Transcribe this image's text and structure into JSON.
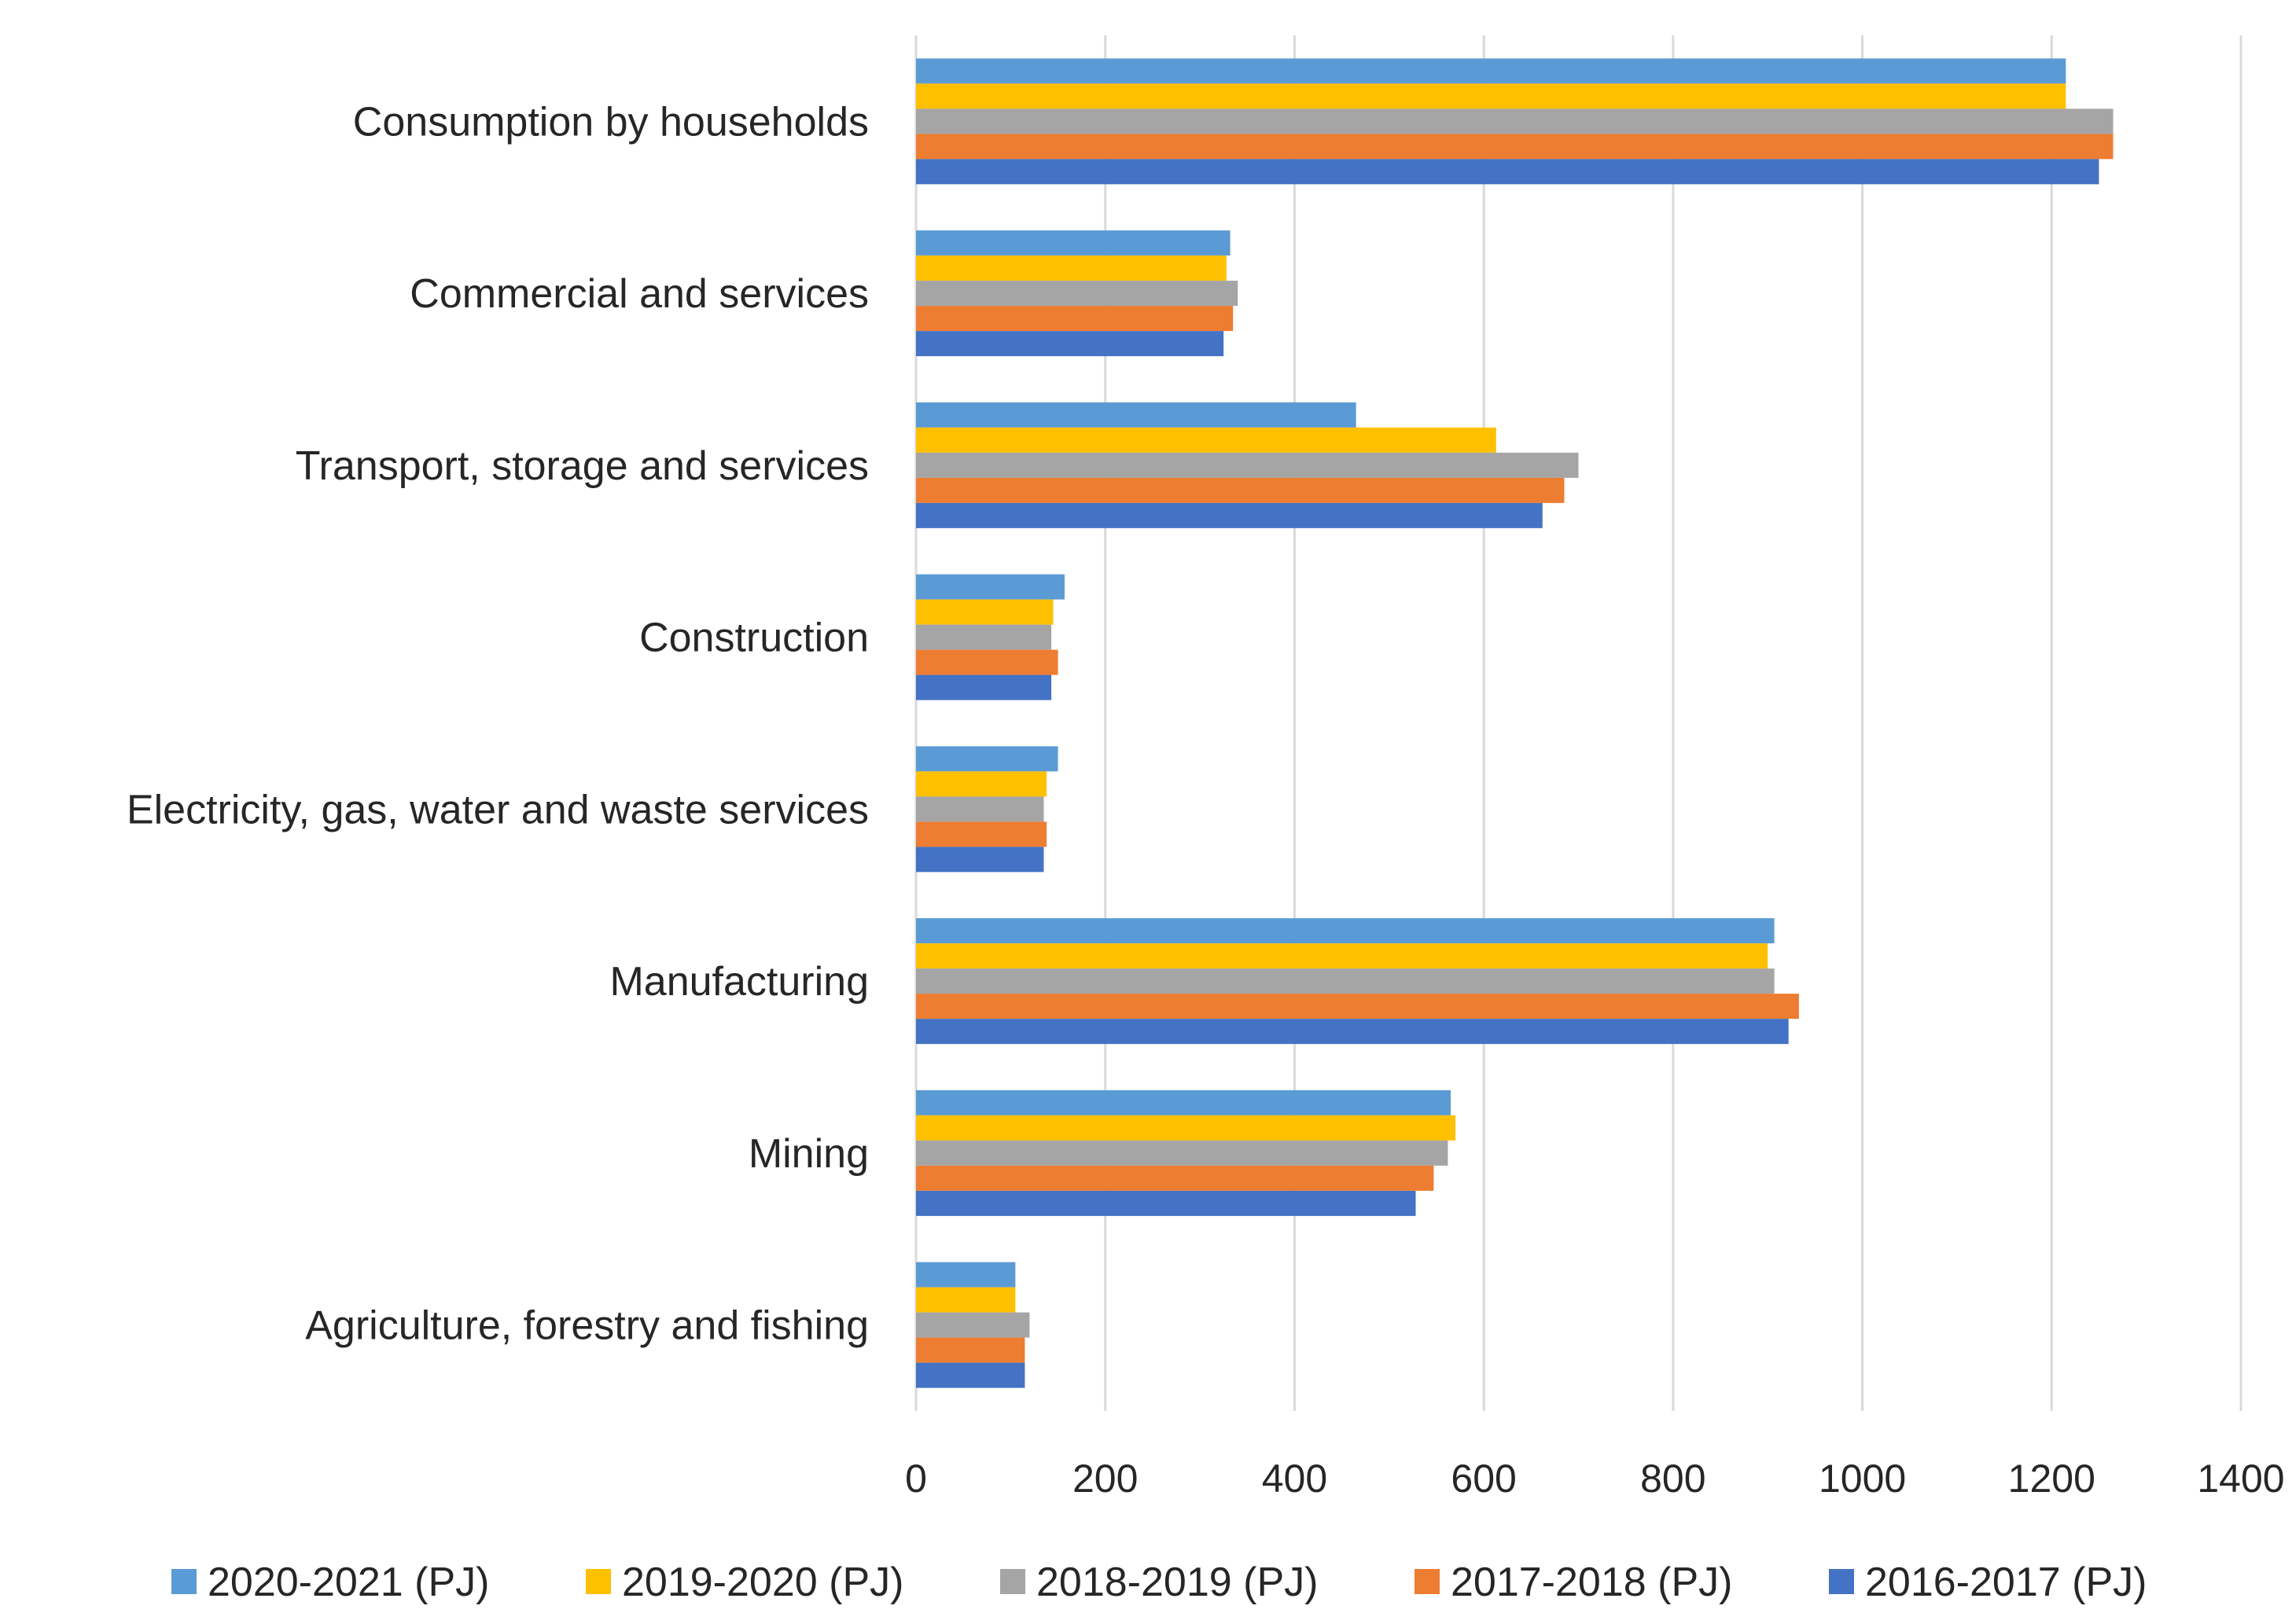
{
  "chart_data": {
    "type": "bar",
    "orientation": "horizontal",
    "title": "",
    "xlabel": "",
    "ylabel": "",
    "xlim": [
      0,
      1400
    ],
    "ticks": [
      0,
      200,
      400,
      600,
      800,
      1000,
      1200,
      1400
    ],
    "grid": true,
    "legend_position": "bottom",
    "categories": [
      "Consumption by households",
      "Commercial and services",
      "Transport, storage and services",
      "Construction",
      "Electricity, gas, water and waste services",
      "Manufacturing",
      "Mining",
      "Agriculture, forestry and fishing"
    ],
    "series": [
      {
        "name": "2020-2021 (PJ)",
        "color": "#5b9bd5",
        "values": [
          1215,
          332,
          465,
          157,
          150,
          907,
          565,
          105
        ]
      },
      {
        "name": "2019-2020 (PJ)",
        "color": "#ffc000",
        "values": [
          1215,
          328,
          613,
          145,
          138,
          900,
          570,
          105
        ]
      },
      {
        "name": "2018-2019 (PJ)",
        "color": "#a5a5a5",
        "values": [
          1265,
          340,
          700,
          143,
          135,
          907,
          562,
          120
        ]
      },
      {
        "name": "2017-2018 (PJ)",
        "color": "#ed7d31",
        "values": [
          1265,
          335,
          685,
          150,
          138,
          933,
          547,
          115
        ]
      },
      {
        "name": "2016-2017 (PJ)",
        "color": "#4472c4",
        "values": [
          1250,
          325,
          662,
          143,
          135,
          922,
          528,
          115
        ]
      }
    ]
  }
}
